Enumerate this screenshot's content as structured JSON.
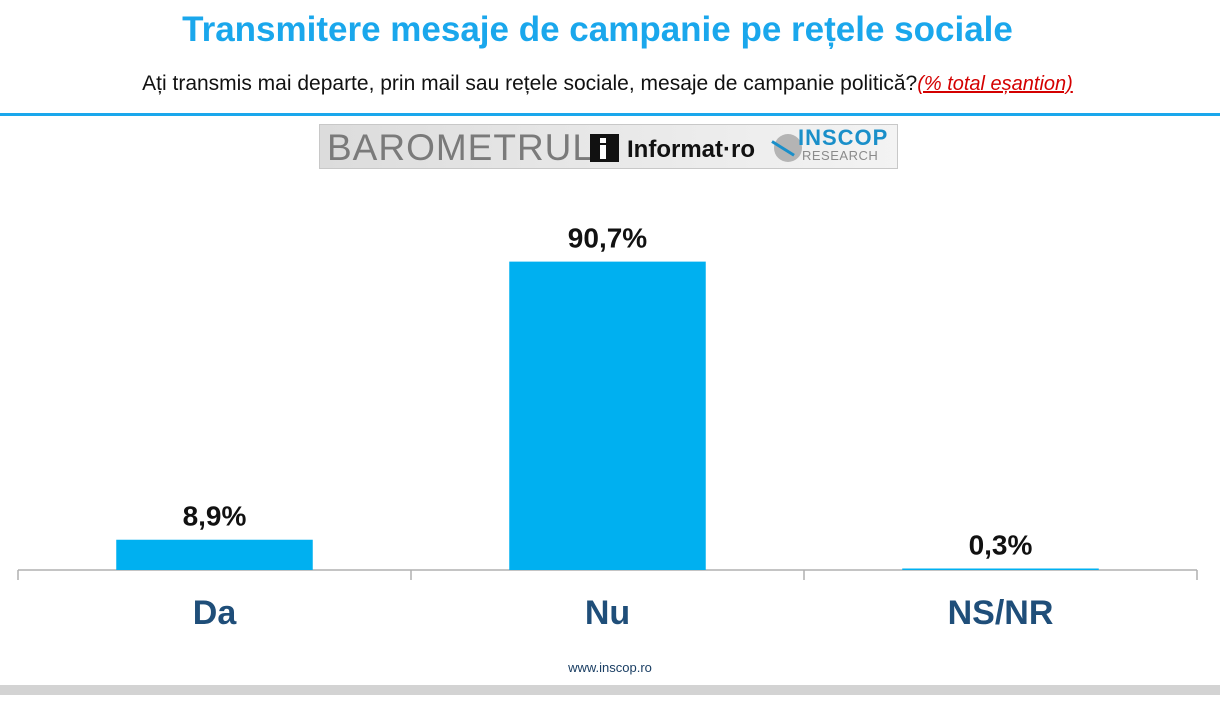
{
  "title": "Transmitere mesaje de campanie pe rețele sociale",
  "subtitle": {
    "question": "Ați transmis mai departe, prin mail sau rețele sociale, mesaje de campanie politică?",
    "note": "(% total eșantion)"
  },
  "logos": {
    "barometrul": "BAROMETRUL",
    "informat": "Informat·ro",
    "inscop": "INSCOP",
    "research": "RESEARCH"
  },
  "footer_url": "www.inscop.ro",
  "colors": {
    "title": "#1aa7ec",
    "bar": "#00b0f0",
    "category_label": "#1f4e79",
    "note": "#d40000"
  },
  "chart_data": {
    "type": "bar",
    "categories": [
      "Da",
      "Nu",
      "NS/NR"
    ],
    "values": [
      8.9,
      90.7,
      0.3
    ],
    "value_labels": [
      "8,9%",
      "90,7%",
      "0,3%"
    ],
    "unit": "%",
    "ylim": [
      0,
      100
    ],
    "grid": false,
    "legend": "none"
  }
}
